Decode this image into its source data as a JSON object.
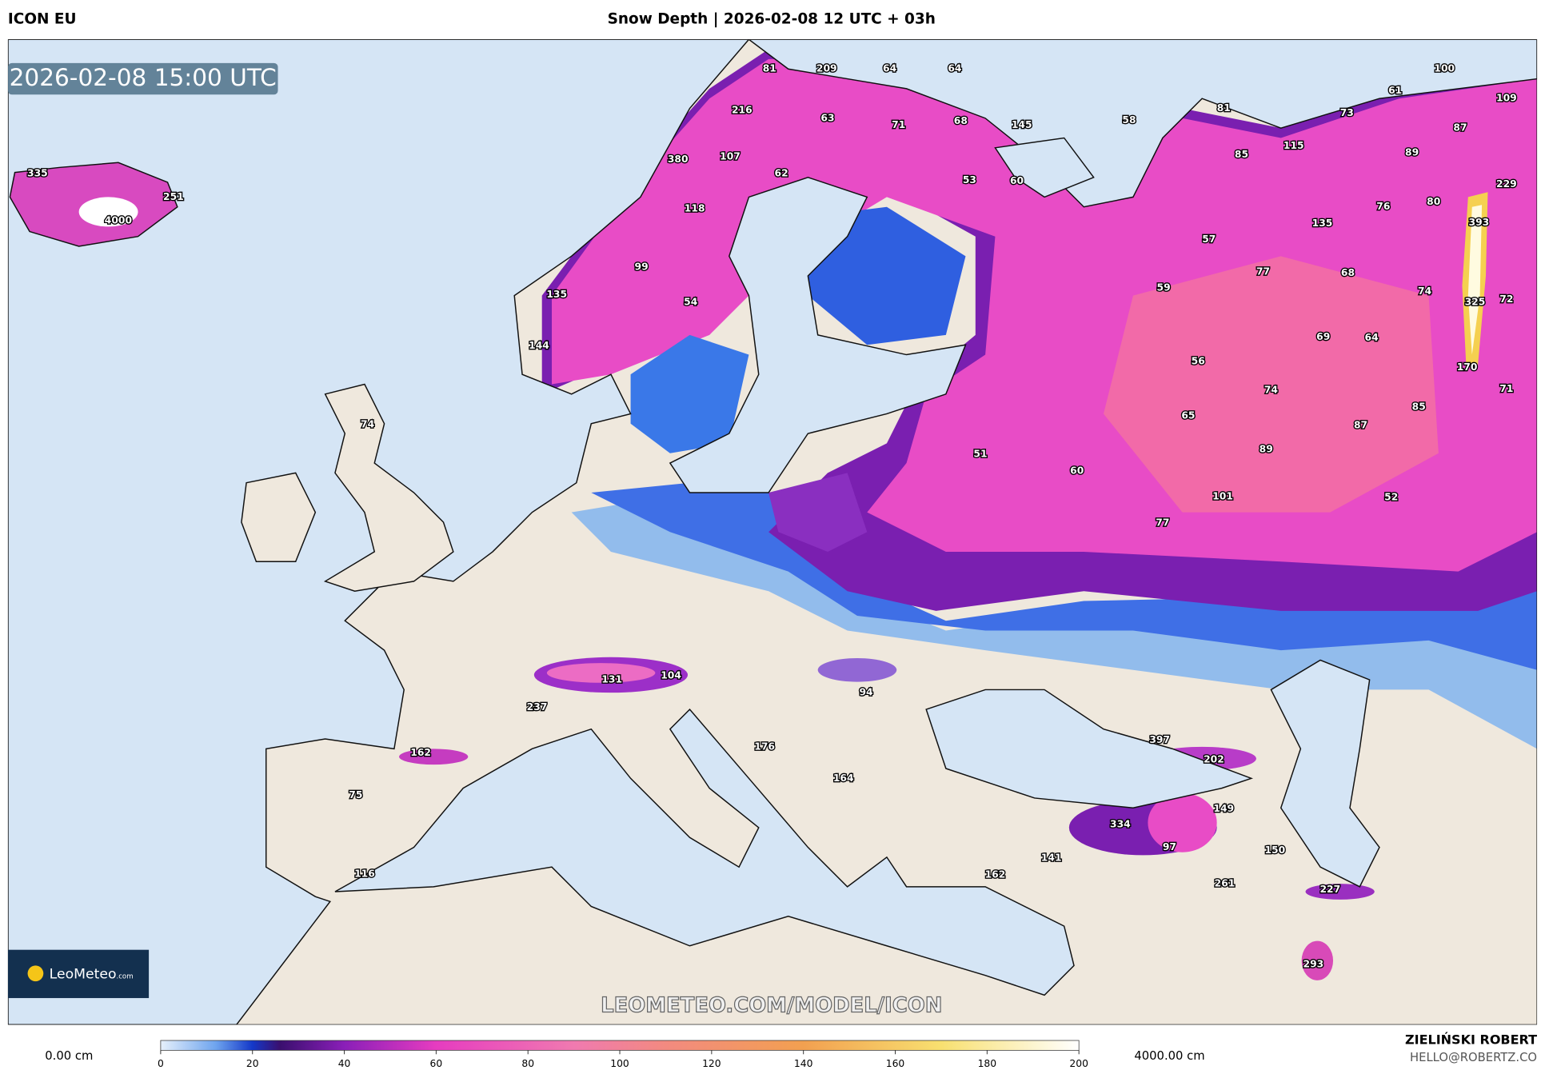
{
  "header": {
    "model": "ICON EU",
    "title": "Snow Depth | 2026-02-08 12 UTC + 03h"
  },
  "map": {
    "timestamp": "2026-02-08 15:00 UTC",
    "watermark": "LEOMETEO.COM/MODEL/ICON",
    "logo": {
      "name": "LeoMeteo",
      "suffix": ".com"
    },
    "point_values": [
      335,
      251,
      4000,
      81,
      209,
      64,
      64,
      100,
      61,
      109,
      216,
      63,
      71,
      68,
      145,
      58,
      81,
      73,
      87,
      380,
      107,
      62,
      53,
      60,
      85,
      115,
      89,
      229,
      118,
      76,
      80,
      393,
      135,
      57,
      99,
      77,
      68,
      135,
      59,
      74,
      325,
      72,
      54,
      144,
      69,
      64,
      56,
      170,
      74,
      71,
      85,
      74,
      65,
      87,
      89,
      51,
      60,
      101,
      52,
      77,
      131,
      104,
      94,
      237,
      397,
      162,
      176,
      202,
      75,
      164,
      149,
      334,
      97,
      150,
      141,
      162,
      116,
      261,
      227,
      293
    ]
  },
  "colorbar": {
    "min_label": "0.00 cm",
    "max_label": "4000.00 cm",
    "ticks": [
      0,
      20,
      40,
      60,
      80,
      100,
      120,
      140,
      160,
      180,
      200
    ],
    "range": [
      0,
      200
    ]
  },
  "footer": {
    "author": "ZIELIŃSKI ROBERT",
    "email": "HELLO@ROBERTZ.CO"
  }
}
